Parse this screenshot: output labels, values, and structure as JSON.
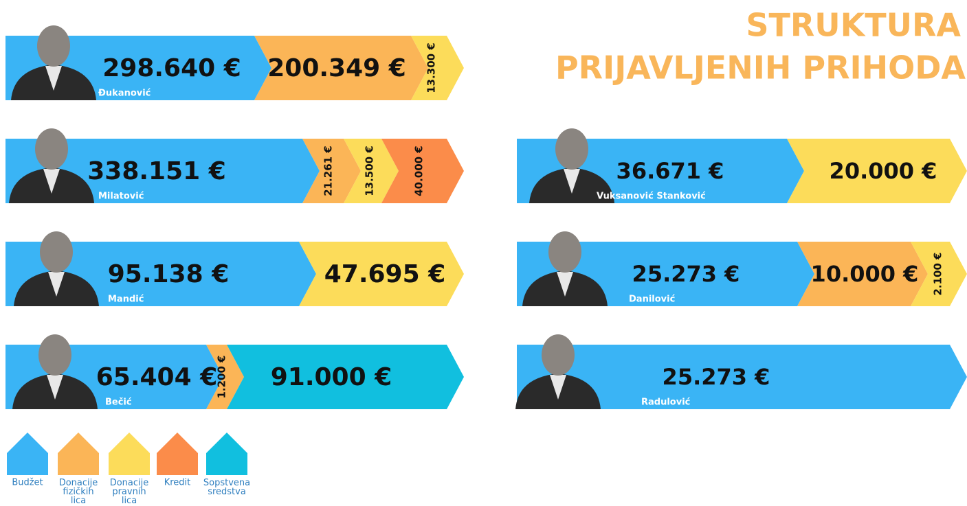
{
  "header": {
    "title_lines": [
      "STRUKTURA",
      "PRIJAVLJENIH PRIHODA"
    ]
  },
  "rows": [
    {
      "name": "Đukanović",
      "segments": [
        {
          "label": "298.640 €",
          "color": "#3ab4f5"
        },
        {
          "label": "200.349 €",
          "color": "#fbb557"
        },
        {
          "label": "13.300 €",
          "color": "#fcdc5a"
        }
      ]
    },
    {
      "name": "Milatović",
      "segments": [
        {
          "label": "338.151 €",
          "color": "#3ab4f5"
        },
        {
          "label": "21.261 €",
          "color": "#fbb557"
        },
        {
          "label": "13.500 €",
          "color": "#fcdc5a"
        },
        {
          "label": "40.000 €",
          "color": "#fb8c4a"
        }
      ]
    },
    {
      "name": "Mandić",
      "segments": [
        {
          "label": "95.138 €",
          "color": "#3ab4f5"
        },
        {
          "label": "47.695 €",
          "color": "#fcdc5a"
        }
      ]
    },
    {
      "name": "Bečić",
      "segments": [
        {
          "label": "65.404 €",
          "color": "#3ab4f5"
        },
        {
          "label": "1.200 €",
          "color": "#fbb557"
        },
        {
          "label": "91.000 €",
          "color": "#11bfdf"
        }
      ]
    },
    {
      "name": "Vuksanović Stanković",
      "segments": [
        {
          "label": "36.671 €",
          "color": "#3ab4f5"
        },
        {
          "label": "20.000 €",
          "color": "#fcdc5a"
        }
      ]
    },
    {
      "name": "Danilović",
      "segments": [
        {
          "label": "25.273 €",
          "color": "#3ab4f5"
        },
        {
          "label": "10.000 €",
          "color": "#fbb557"
        },
        {
          "label": "2.100 €",
          "color": "#fcdc5a"
        }
      ]
    },
    {
      "name": "Radulović",
      "segments": [
        {
          "label": "25.273 €",
          "color": "#3ab4f5"
        }
      ]
    }
  ],
  "legend": [
    {
      "label": "Budžet",
      "color": "#3ab4f5"
    },
    {
      "label": "Donacije fizičkih lica",
      "color": "#fbb557"
    },
    {
      "label": "Donacije pravnih lica",
      "color": "#fcdc5a"
    },
    {
      "label": "Kredit",
      "color": "#fb8c4a"
    },
    {
      "label": "Sopstvena sredstva",
      "color": "#11bfdf"
    }
  ]
}
